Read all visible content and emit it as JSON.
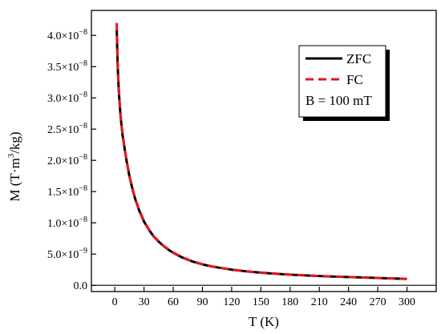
{
  "chart_data": {
    "type": "line",
    "xlabel": "T (K)",
    "ylabel_main": "M (T·m",
    "ylabel_sup": "3",
    "ylabel_tail": "/kg)",
    "xlim": [
      -24,
      330
    ],
    "ylim": [
      -1e-09,
      4.4e-08
    ],
    "x_ticks": [
      0,
      30,
      60,
      90,
      120,
      150,
      180,
      210,
      240,
      270,
      300
    ],
    "y_ticks": [
      {
        "value": 0,
        "mantissa": "0.0",
        "exp": ""
      },
      {
        "value": 5e-09,
        "mantissa": "5.0×10",
        "exp": "−9"
      },
      {
        "value": 1e-08,
        "mantissa": "1.0×10",
        "exp": "−8"
      },
      {
        "value": 1.5e-08,
        "mantissa": "1.5×10",
        "exp": "−8"
      },
      {
        "value": 2e-08,
        "mantissa": "2.0×10",
        "exp": "−8"
      },
      {
        "value": 2.5e-08,
        "mantissa": "2.5×10",
        "exp": "−8"
      },
      {
        "value": 3e-08,
        "mantissa": "3.0×10",
        "exp": "−8"
      },
      {
        "value": 3.5e-08,
        "mantissa": "3.5×10",
        "exp": "−8"
      },
      {
        "value": 4e-08,
        "mantissa": "4.0×10",
        "exp": "−8"
      }
    ],
    "zero_line": true,
    "grid": false,
    "legend_position": "top-right",
    "legend_note": "B = 100 mT",
    "series": [
      {
        "name": "ZFC",
        "color": "#000000",
        "style": "solid",
        "x": [
          2,
          3,
          4,
          5,
          6,
          8,
          10,
          12,
          15,
          18,
          21,
          25,
          30,
          35,
          40,
          45,
          50,
          55,
          60,
          70,
          80,
          90,
          100,
          120,
          140,
          160,
          180,
          200,
          220,
          240,
          260,
          280,
          300
        ],
        "y": [
          4.1e-08,
          3.5e-08,
          3.15e-08,
          2.9e-08,
          2.7e-08,
          2.4e-08,
          2.2e-08,
          2e-08,
          1.75e-08,
          1.55e-08,
          1.38e-08,
          1.2e-08,
          1.02e-08,
          8.9e-09,
          7.8e-09,
          7e-09,
          6.3e-09,
          5.7e-09,
          5.2e-09,
          4.4e-09,
          3.8e-09,
          3.35e-09,
          3e-09,
          2.5e-09,
          2.15e-09,
          1.9e-09,
          1.7e-09,
          1.55e-09,
          1.42e-09,
          1.32e-09,
          1.22e-09,
          1.12e-09,
          1.02e-09
        ]
      },
      {
        "name": "FC",
        "color": "#e8161d",
        "style": "dashed",
        "x": [
          2,
          3,
          4,
          5,
          6,
          8,
          10,
          12,
          15,
          18,
          21,
          25,
          30,
          35,
          40,
          45,
          50,
          55,
          60,
          70,
          80,
          90,
          100,
          120,
          140,
          160,
          180,
          200,
          220,
          240,
          260,
          280,
          300
        ],
        "y": [
          4.2e-08,
          3.55e-08,
          3.18e-08,
          2.92e-08,
          2.72e-08,
          2.42e-08,
          2.21e-08,
          2.01e-08,
          1.76e-08,
          1.56e-08,
          1.39e-08,
          1.21e-08,
          1.03e-08,
          8.95e-09,
          7.85e-09,
          7.05e-09,
          6.35e-09,
          5.75e-09,
          5.25e-09,
          4.45e-09,
          3.85e-09,
          3.38e-09,
          3.02e-09,
          2.52e-09,
          2.17e-09,
          1.92e-09,
          1.72e-09,
          1.56e-09,
          1.43e-09,
          1.33e-09,
          1.23e-09,
          1.13e-09,
          1.03e-09
        ]
      }
    ]
  }
}
